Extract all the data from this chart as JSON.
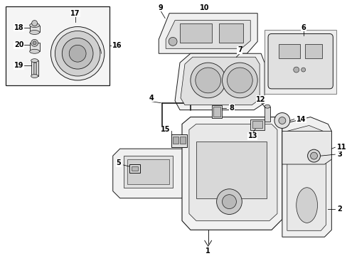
{
  "bg_color": "#ffffff",
  "line_color": "#1a1a1a",
  "text_color": "#000000",
  "fig_width": 4.89,
  "fig_height": 3.6,
  "dpi": 100,
  "lw": 0.7,
  "fs": 7.0
}
